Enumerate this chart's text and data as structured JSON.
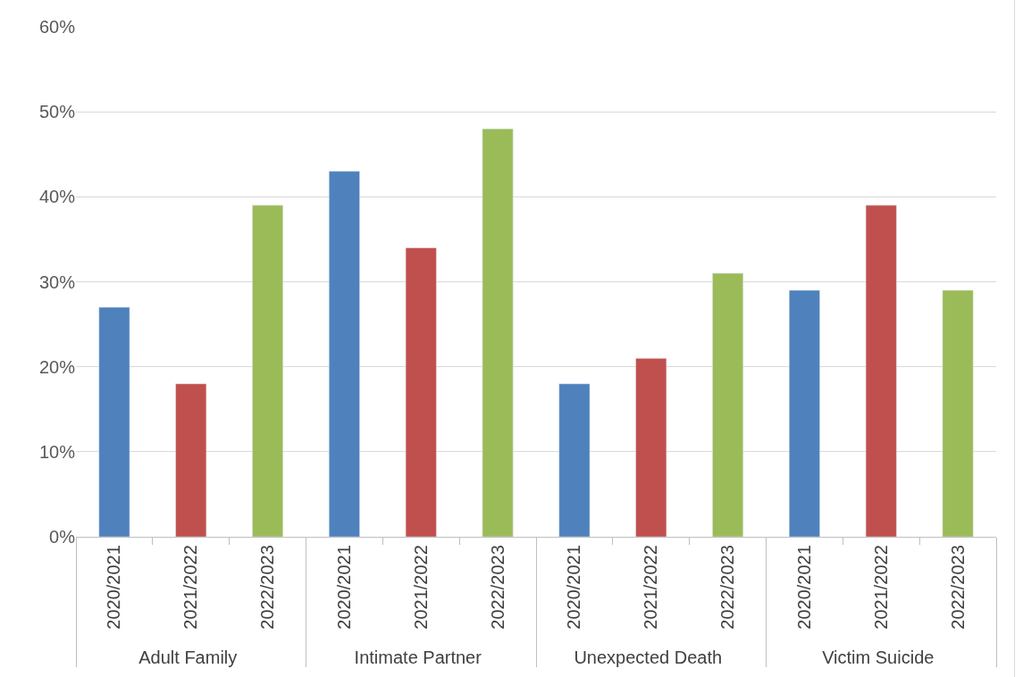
{
  "chart_data": {
    "type": "bar",
    "categories": [
      "Adult Family",
      "Intimate Partner",
      "Unexpected Death",
      "Victim Suicide"
    ],
    "series": [
      {
        "name": "2020/2021",
        "color": "#4f81bd",
        "values": [
          27,
          43,
          18,
          29
        ]
      },
      {
        "name": "2021/2022",
        "color": "#c0504d",
        "values": [
          18,
          34,
          21,
          39
        ]
      },
      {
        "name": "2022/2023",
        "color": "#9bbb59",
        "values": [
          39,
          48,
          31,
          29
        ]
      }
    ],
    "ylim": [
      0,
      60
    ],
    "yticks": [
      {
        "value": 0,
        "label": "0%"
      },
      {
        "value": 10,
        "label": "10%"
      },
      {
        "value": 20,
        "label": "20%"
      },
      {
        "value": 30,
        "label": "30%"
      },
      {
        "value": 40,
        "label": "40%"
      },
      {
        "value": 50,
        "label": "50%"
      },
      {
        "value": 60,
        "label": "60%"
      }
    ],
    "grid": "y",
    "legend": false
  }
}
